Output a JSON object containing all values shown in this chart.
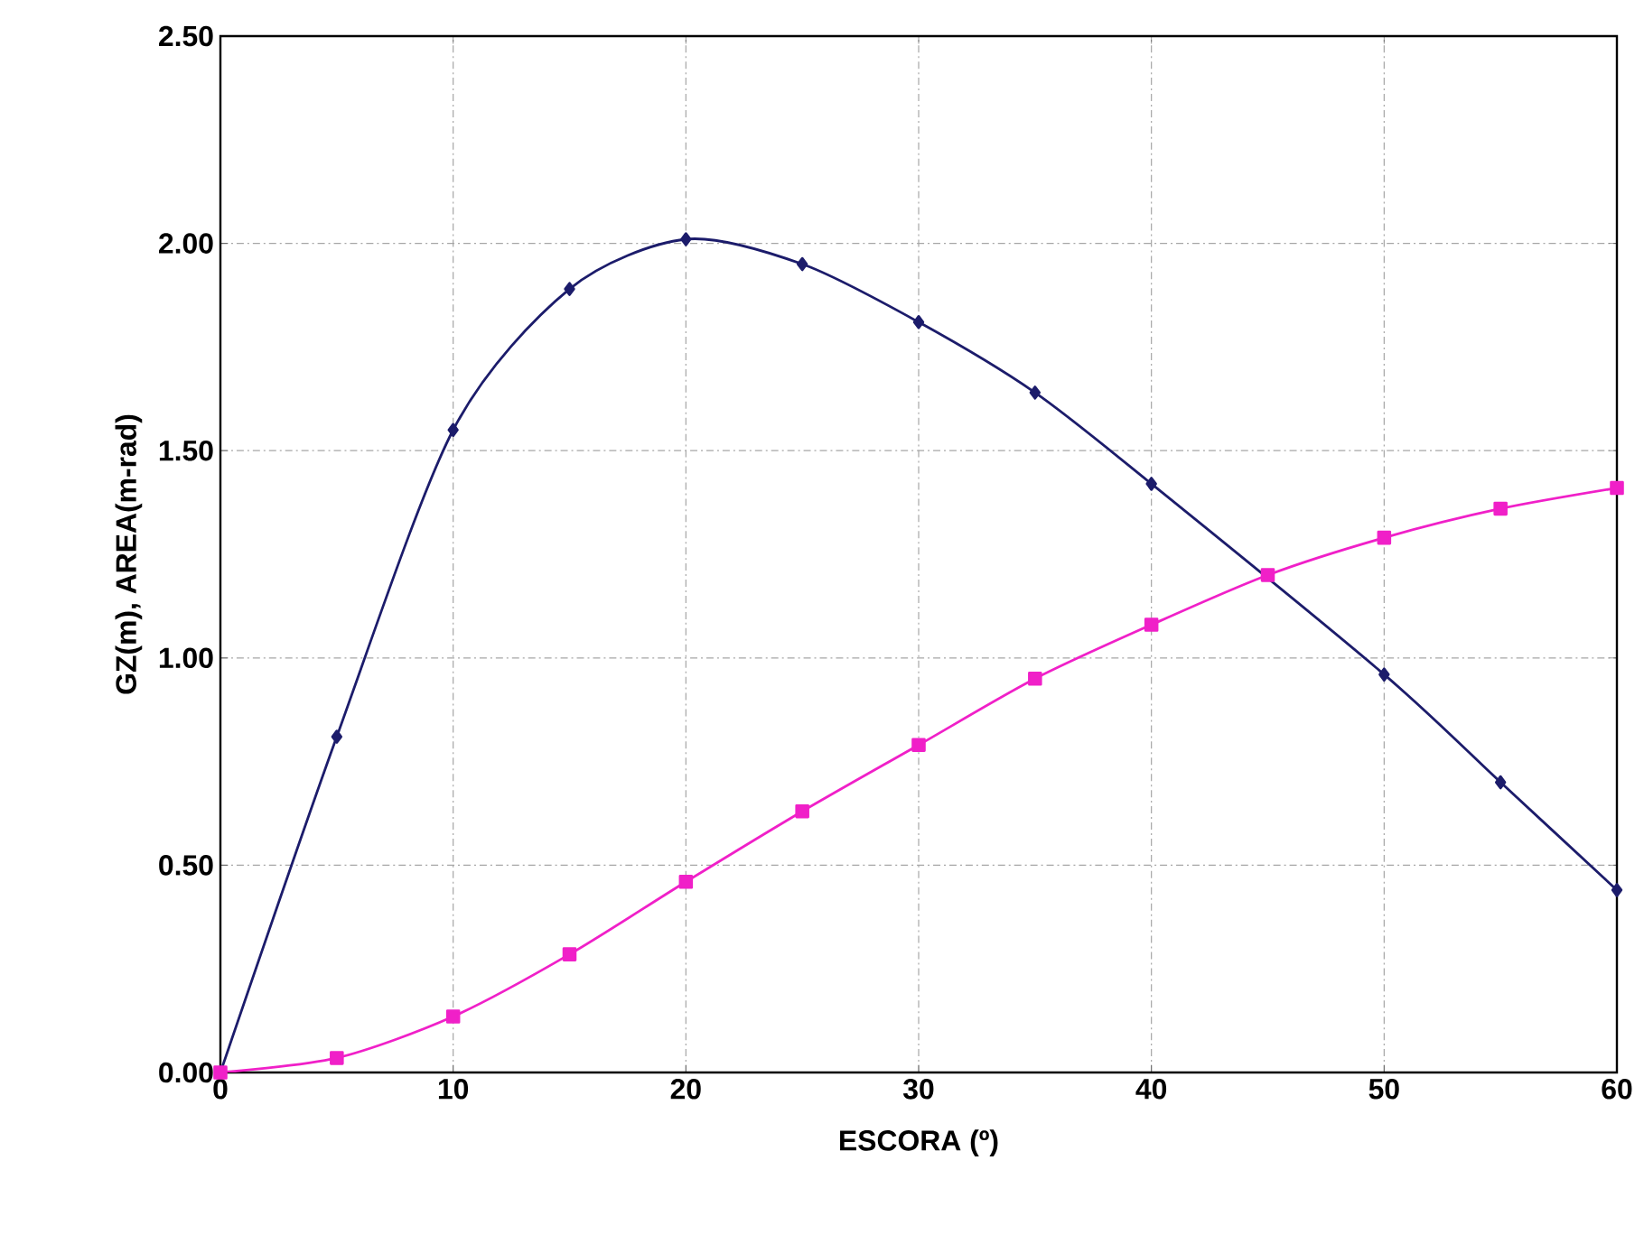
{
  "chart_data": {
    "type": "line",
    "xlabel": "ESCORA (º)",
    "ylabel": "GZ(m), AREA(m-rad)",
    "x": [
      0,
      5,
      10,
      15,
      20,
      25,
      30,
      35,
      40,
      45,
      50,
      55,
      60
    ],
    "series": [
      {
        "color": "#1c1c6b",
        "marker": "diamond",
        "values": [
          0,
          0.81,
          1.55,
          1.89,
          2.01,
          1.95,
          1.81,
          1.64,
          1.42,
          null,
          0.96,
          0.7,
          0.44
        ]
      },
      {
        "color": "#f020c8",
        "marker": "square",
        "values": [
          0,
          0.035,
          0.135,
          0.285,
          0.46,
          0.63,
          0.79,
          0.95,
          1.08,
          1.2,
          1.29,
          1.36,
          1.41
        ]
      }
    ],
    "xlim": [
      0,
      60
    ],
    "ylim": [
      0,
      2.5
    ],
    "xticks": [
      0,
      10,
      20,
      30,
      40,
      50,
      60
    ],
    "yticks": [
      {
        "value": 0,
        "label": "0.00"
      },
      {
        "value": 0.5,
        "label": "0.50"
      },
      {
        "value": 1,
        "label": "1.00"
      },
      {
        "value": 1.5,
        "label": "1.50"
      },
      {
        "value": 2,
        "label": "2.00"
      },
      {
        "value": 2.5,
        "label": "2.50"
      }
    ],
    "grid": true,
    "line_style": "solid"
  }
}
